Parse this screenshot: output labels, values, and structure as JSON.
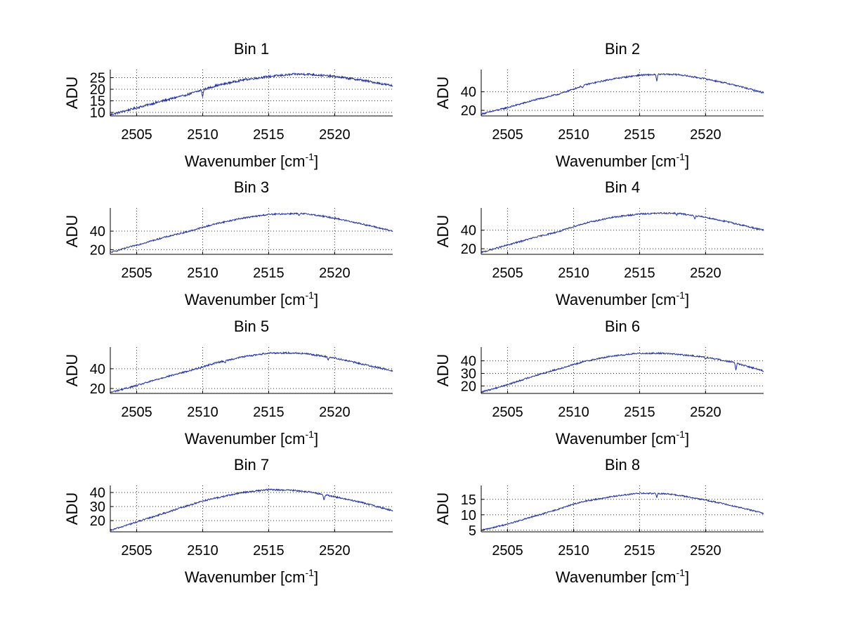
{
  "figure": {
    "background": "#ffffff",
    "line_color": "#1f2f9e",
    "grid_color": "#333333"
  },
  "chart_data": [
    {
      "type": "line",
      "title": "Bin 1",
      "xlabel": "Wavenumber [cm",
      "xlabel_sup": "-1",
      "xlabel_close": "]",
      "ylabel": "ADU",
      "xlim": [
        2503,
        2524.4
      ],
      "ylim": [
        8.5,
        28.5
      ],
      "xticks": [
        2505,
        2510,
        2515,
        2520
      ],
      "yticks": [
        10,
        15,
        20,
        25
      ],
      "grid": true,
      "noise": 0.45,
      "series": [
        {
          "x": [
            2503,
            2505,
            2507,
            2509,
            2510,
            2511,
            2513,
            2515,
            2517,
            2518,
            2520,
            2522,
            2524.4
          ],
          "y": [
            9,
            12,
            15,
            18,
            19.8,
            21.5,
            24,
            25.5,
            26.5,
            26.5,
            25.5,
            24,
            21.5
          ]
        }
      ],
      "dips": [
        [
          2510,
          -3.0
        ],
        [
          2508.6,
          -0.8
        ]
      ]
    },
    {
      "type": "line",
      "title": "Bin 2",
      "xlabel": "Wavenumber [cm",
      "xlabel_sup": "-1",
      "xlabel_close": "]",
      "ylabel": "ADU",
      "xlim": [
        2503,
        2524.4
      ],
      "ylim": [
        14,
        64
      ],
      "xticks": [
        2505,
        2510,
        2515,
        2520
      ],
      "yticks": [
        20,
        40
      ],
      "grid": true,
      "noise": 0.8,
      "series": [
        {
          "x": [
            2503,
            2505,
            2507,
            2509,
            2510,
            2511,
            2513,
            2515,
            2517,
            2518,
            2520,
            2522,
            2524.4
          ],
          "y": [
            16,
            23,
            31,
            38,
            43,
            48,
            54,
            58,
            59,
            58.5,
            54,
            48,
            39
          ]
        }
      ],
      "dips": [
        [
          2516.3,
          -7.0
        ],
        [
          2510.7,
          -2.0
        ]
      ]
    },
    {
      "type": "line",
      "title": "Bin 3",
      "xlabel": "Wavenumber [cm",
      "xlabel_sup": "-1",
      "xlabel_close": "]",
      "ylabel": "ADU",
      "xlim": [
        2503,
        2524.4
      ],
      "ylim": [
        15,
        65
      ],
      "xticks": [
        2505,
        2510,
        2515,
        2520
      ],
      "yticks": [
        20,
        40
      ],
      "grid": true,
      "noise": 0.8,
      "series": [
        {
          "x": [
            2503,
            2505,
            2507,
            2509,
            2510,
            2511,
            2513,
            2515,
            2517,
            2518,
            2520,
            2522,
            2524.4
          ],
          "y": [
            17,
            25,
            33,
            40,
            44,
            48,
            54,
            58,
            59,
            58.5,
            54,
            48,
            40
          ]
        }
      ],
      "dips": [
        [
          2517.3,
          -2.5
        ]
      ]
    },
    {
      "type": "line",
      "title": "Bin 4",
      "xlabel": "Wavenumber [cm",
      "xlabel_sup": "-1",
      "xlabel_close": "]",
      "ylabel": "ADU",
      "xlim": [
        2503,
        2524.4
      ],
      "ylim": [
        14,
        64
      ],
      "xticks": [
        2505,
        2510,
        2515,
        2520
      ],
      "yticks": [
        20,
        40
      ],
      "grid": true,
      "noise": 0.8,
      "series": [
        {
          "x": [
            2503,
            2505,
            2507,
            2509,
            2510,
            2511,
            2513,
            2515,
            2517,
            2518,
            2520,
            2522,
            2524.4
          ],
          "y": [
            16,
            24,
            32,
            39,
            44,
            48,
            54,
            57.5,
            58.5,
            58,
            54,
            48,
            40
          ]
        }
      ],
      "dips": [
        [
          2519.2,
          -3.0
        ],
        [
          2517.8,
          -1.5
        ]
      ]
    },
    {
      "type": "line",
      "title": "Bin 5",
      "xlabel": "Wavenumber [cm",
      "xlabel_sup": "-1",
      "xlabel_close": "]",
      "ylabel": "ADU",
      "xlim": [
        2503,
        2524.4
      ],
      "ylim": [
        15,
        62
      ],
      "xticks": [
        2505,
        2510,
        2515,
        2520
      ],
      "yticks": [
        20,
        40
      ],
      "grid": true,
      "noise": 0.8,
      "series": [
        {
          "x": [
            2503,
            2505,
            2507,
            2509,
            2510,
            2511,
            2513,
            2515,
            2517,
            2518,
            2520,
            2522,
            2524.4
          ],
          "y": [
            16,
            23,
            31,
            38,
            42,
            46,
            52,
            56,
            56,
            55,
            51,
            45,
            38
          ]
        }
      ],
      "dips": [
        [
          2519.5,
          -3.0
        ],
        [
          2511.7,
          -2.0
        ]
      ]
    },
    {
      "type": "line",
      "title": "Bin 6",
      "xlabel": "Wavenumber [cm",
      "xlabel_sup": "-1",
      "xlabel_close": "]",
      "ylabel": "ADU",
      "xlim": [
        2503,
        2524.4
      ],
      "ylim": [
        14,
        51
      ],
      "xticks": [
        2505,
        2510,
        2515,
        2520
      ],
      "yticks": [
        20,
        30,
        40
      ],
      "grid": true,
      "noise": 0.6,
      "series": [
        {
          "x": [
            2503,
            2505,
            2507,
            2509,
            2510,
            2511,
            2513,
            2515,
            2517,
            2518,
            2520,
            2522,
            2524.4
          ],
          "y": [
            15,
            21,
            28,
            34,
            37,
            40,
            44,
            46,
            46,
            45,
            43,
            39,
            32
          ]
        }
      ],
      "dips": [
        [
          2522.3,
          -5.0
        ],
        [
          2520,
          -2.0
        ]
      ]
    },
    {
      "type": "line",
      "title": "Bin 7",
      "xlabel": "Wavenumber [cm",
      "xlabel_sup": "-1",
      "xlabel_close": "]",
      "ylabel": "ADU",
      "xlim": [
        2503,
        2524.4
      ],
      "ylim": [
        12,
        45
      ],
      "xticks": [
        2505,
        2510,
        2515,
        2520
      ],
      "yticks": [
        20,
        30,
        40
      ],
      "grid": true,
      "noise": 0.55,
      "series": [
        {
          "x": [
            2503,
            2505,
            2507,
            2509,
            2510,
            2511,
            2513,
            2515,
            2517,
            2518,
            2520,
            2522,
            2524.4
          ],
          "y": [
            13,
            19,
            25,
            31,
            34,
            36,
            40,
            42,
            41.5,
            40.5,
            37,
            33,
            27
          ]
        }
      ],
      "dips": [
        [
          2519.2,
          -3.5
        ]
      ]
    },
    {
      "type": "line",
      "title": "Bin 8",
      "xlabel": "Wavenumber [cm",
      "xlabel_sup": "-1",
      "xlabel_close": "]",
      "ylabel": "ADU",
      "xlim": [
        2503,
        2524.4
      ],
      "ylim": [
        4.5,
        19.5
      ],
      "xticks": [
        2505,
        2510,
        2515,
        2520
      ],
      "yticks": [
        5,
        10,
        15
      ],
      "grid": true,
      "noise": 0.22,
      "series": [
        {
          "x": [
            2503,
            2505,
            2507,
            2509,
            2510,
            2511,
            2513,
            2515,
            2517,
            2518,
            2520,
            2522,
            2524.4
          ],
          "y": [
            5,
            7,
            9.5,
            12,
            13.5,
            14.5,
            16,
            17,
            16.8,
            16.3,
            14.8,
            13,
            10.5
          ]
        }
      ],
      "dips": [
        [
          2516.3,
          -1.2
        ]
      ]
    }
  ]
}
